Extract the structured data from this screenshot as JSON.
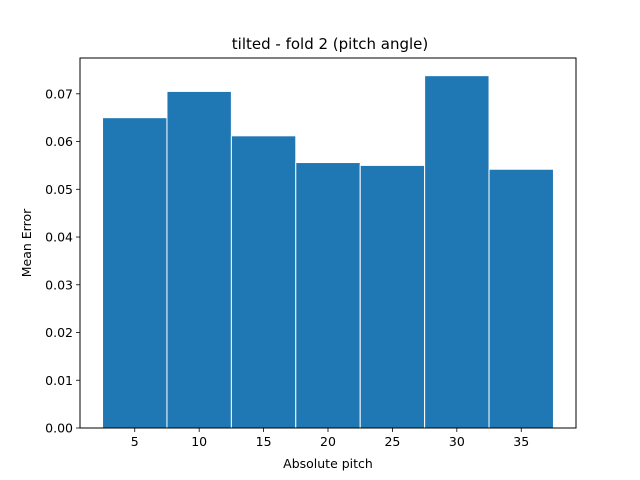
{
  "chart_data": {
    "type": "bar",
    "title": "tilted - fold 2 (pitch angle)",
    "xlabel": "Absolute pitch",
    "ylabel": "Mean Error",
    "bins": [
      [
        2.5,
        7.5
      ],
      [
        7.5,
        12.5
      ],
      [
        12.5,
        17.5
      ],
      [
        17.5,
        22.5
      ],
      [
        22.5,
        27.5
      ],
      [
        27.5,
        32.5
      ],
      [
        32.5,
        37.5
      ]
    ],
    "values": [
      0.065,
      0.0705,
      0.0612,
      0.0556,
      0.055,
      0.0738,
      0.0542
    ],
    "xlim": [
      0.75,
      39.25
    ],
    "ylim": [
      0,
      0.0775
    ],
    "xticks": [
      5,
      10,
      15,
      20,
      25,
      30,
      35
    ],
    "xtick_labels": [
      "5",
      "10",
      "15",
      "20",
      "25",
      "30",
      "35"
    ],
    "yticks": [
      0,
      0.01,
      0.02,
      0.03,
      0.04,
      0.05,
      0.06,
      0.07
    ],
    "ytick_labels": [
      "0.00",
      "0.01",
      "0.02",
      "0.03",
      "0.04",
      "0.05",
      "0.06",
      "0.07"
    ],
    "bar_color": "#1f77b4",
    "edge_color": "#ffffff",
    "grid": false,
    "legend": false
  }
}
